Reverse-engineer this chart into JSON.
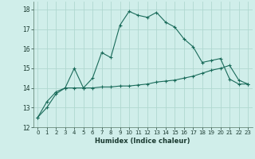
{
  "xlabel": "Humidex (Indice chaleur)",
  "bg_color": "#d0eeea",
  "grid_color": "#b0d8d0",
  "line_color": "#1a6b5a",
  "xlim": [
    -0.5,
    23.5
  ],
  "ylim": [
    12,
    18.4
  ],
  "xticks": [
    0,
    1,
    2,
    3,
    4,
    5,
    6,
    7,
    8,
    9,
    10,
    11,
    12,
    13,
    14,
    15,
    16,
    17,
    18,
    19,
    20,
    21,
    22,
    23
  ],
  "yticks": [
    12,
    13,
    14,
    15,
    16,
    17,
    18
  ],
  "curve1_x": [
    0,
    1,
    2,
    3,
    4,
    5,
    6,
    7,
    8,
    9,
    10,
    11,
    12,
    13,
    14,
    15,
    16,
    17,
    18,
    19,
    20,
    21,
    22,
    23
  ],
  "curve1_y": [
    12.5,
    13.3,
    13.8,
    14.0,
    15.0,
    14.0,
    14.5,
    15.8,
    15.55,
    17.2,
    17.9,
    17.7,
    17.6,
    17.85,
    17.35,
    17.1,
    16.5,
    16.1,
    15.3,
    15.4,
    15.5,
    14.45,
    14.2,
    14.2
  ],
  "curve2_x": [
    0,
    1,
    2,
    3,
    4,
    5,
    6,
    7,
    8,
    9,
    10,
    11,
    12,
    13,
    14,
    15,
    16,
    17,
    18,
    19,
    20,
    21,
    22,
    23
  ],
  "curve2_y": [
    12.5,
    13.0,
    13.7,
    14.0,
    14.0,
    14.0,
    14.0,
    14.05,
    14.05,
    14.1,
    14.1,
    14.15,
    14.2,
    14.3,
    14.35,
    14.4,
    14.5,
    14.6,
    14.75,
    14.9,
    15.0,
    15.15,
    14.4,
    14.2
  ]
}
